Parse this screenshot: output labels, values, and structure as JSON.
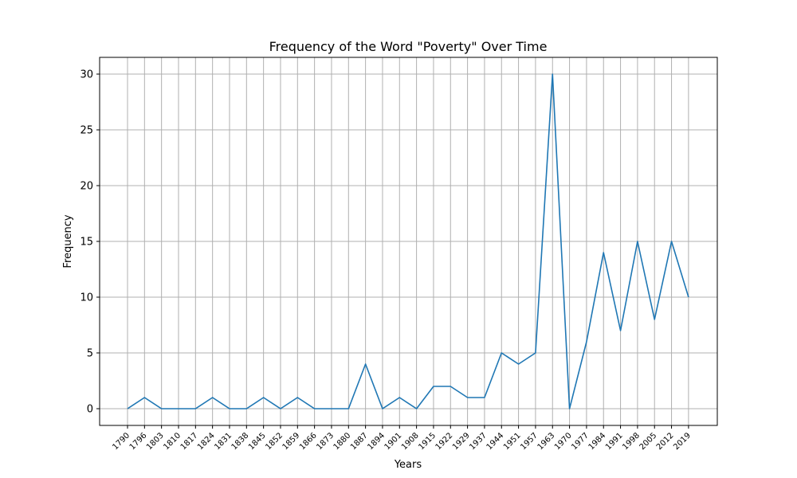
{
  "chart_data": {
    "type": "line",
    "title": "Frequency of the Word \"Poverty\" Over Time",
    "xlabel": "Years",
    "ylabel": "Frequency",
    "ylim": [
      -1.5,
      31.5
    ],
    "yticks": [
      0,
      5,
      10,
      15,
      20,
      25,
      30
    ],
    "grid": true,
    "categories": [
      "1790",
      "1796",
      "1803",
      "1810",
      "1817",
      "1824",
      "1831",
      "1838",
      "1845",
      "1852",
      "1859",
      "1866",
      "1873",
      "1880",
      "1887",
      "1894",
      "1901",
      "1908",
      "1915",
      "1922",
      "1929",
      "1937",
      "1944",
      "1951",
      "1957",
      "1963",
      "1970",
      "1977",
      "1984",
      "1991",
      "1998",
      "2005",
      "2012",
      "2019"
    ],
    "series": [
      {
        "color": "#1f77b4",
        "values": [
          0,
          1,
          0,
          0,
          0,
          1,
          0,
          0,
          1,
          0,
          1,
          0,
          0,
          0,
          4,
          0,
          1,
          0,
          2,
          2,
          1,
          1,
          5,
          4,
          5,
          30,
          0,
          6,
          14,
          7,
          15,
          8,
          15,
          10
        ]
      }
    ]
  }
}
